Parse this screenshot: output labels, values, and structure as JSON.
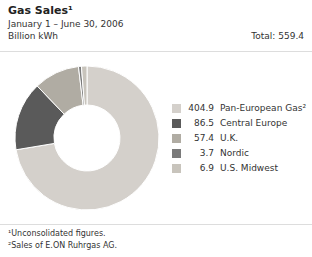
{
  "chart_data": {
    "type": "pie",
    "title": "Gas Sales¹",
    "subtitle": [
      "January 1 – June 30, 2006",
      "Billion kWh"
    ],
    "annotations": [
      "Total: 559.4",
      "¹Unconsolidated figures.",
      "²Sales of E.ON Ruhrgas AG."
    ],
    "categories": [
      "Pan-European Gas²",
      "Central Europe",
      "U.K.",
      "Nordic",
      "U.S. Midwest"
    ],
    "values": [
      404.9,
      86.5,
      57.4,
      3.7,
      6.9
    ],
    "colors": [
      "#d4d0cb",
      "#5a5a5a",
      "#b0aca3",
      "#7a7a7a",
      "#c8c4bc"
    ],
    "data_labels": true,
    "legend": "right"
  }
}
